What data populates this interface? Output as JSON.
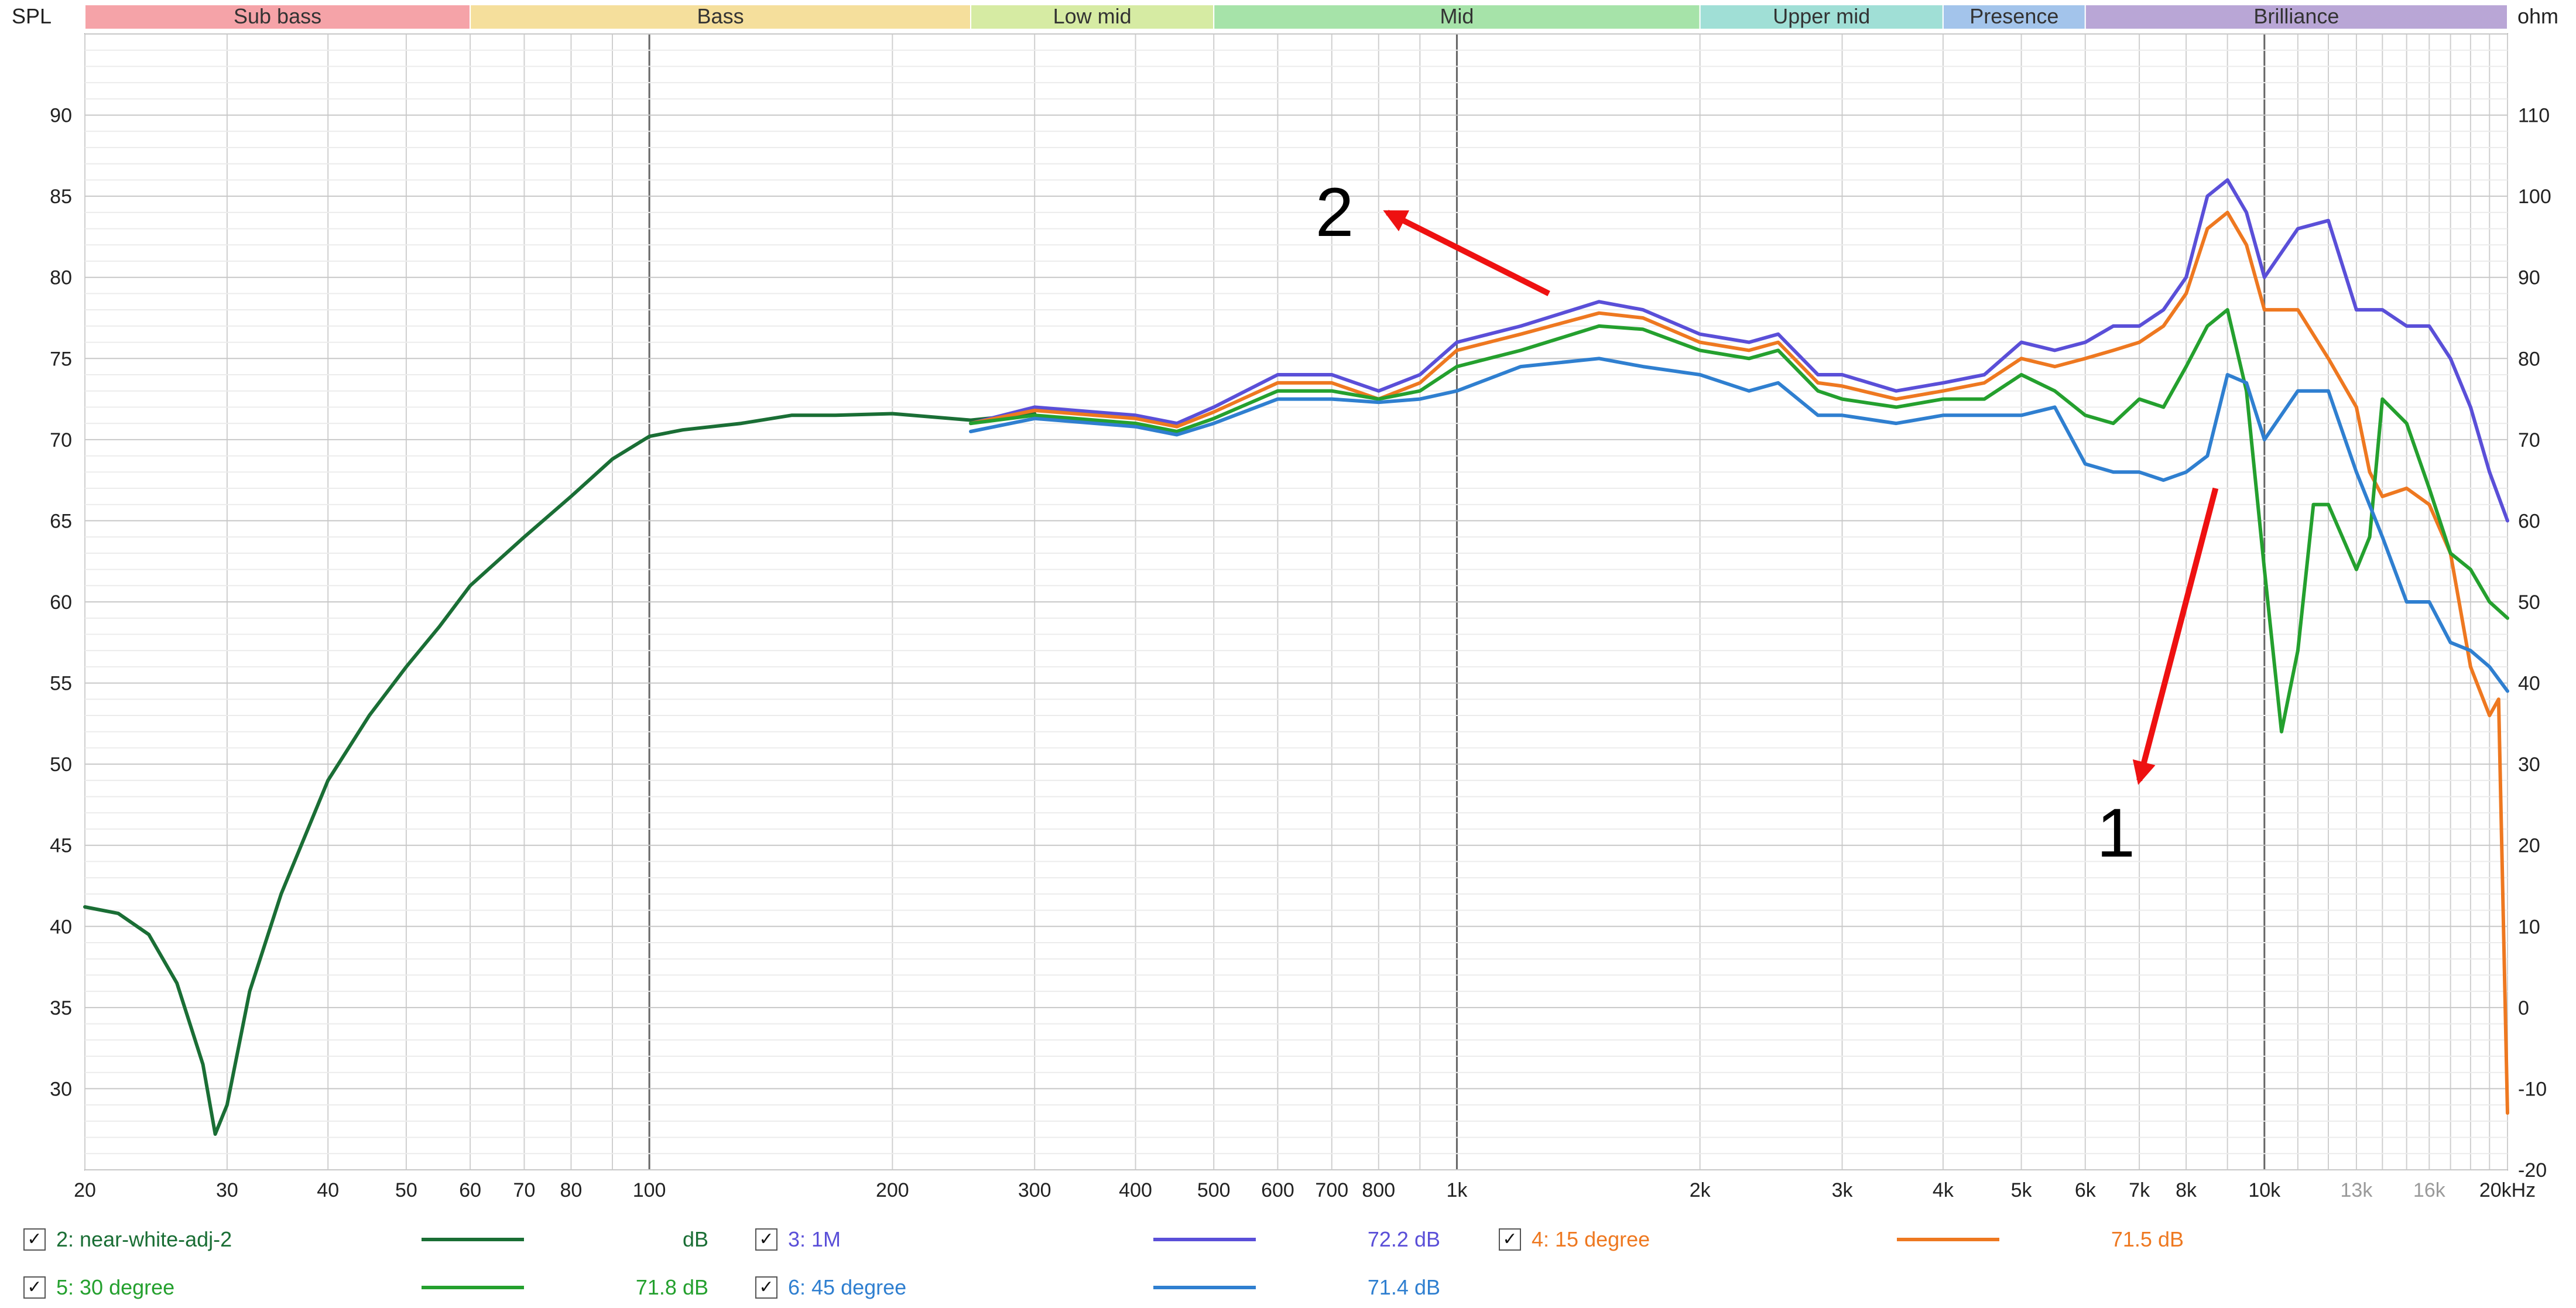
{
  "chart_data": {
    "type": "line",
    "x_scale": "log",
    "xlim": [
      20,
      20000
    ],
    "ylim": [
      25,
      95
    ],
    "y2lim": [
      -20,
      120
    ],
    "grid": true,
    "y_label": "SPL",
    "y2_label": "ohm",
    "x_ticks": [
      {
        "v": 20,
        "label": "20"
      },
      {
        "v": 30,
        "label": "30"
      },
      {
        "v": 40,
        "label": "40"
      },
      {
        "v": 50,
        "label": "50"
      },
      {
        "v": 60,
        "label": "60"
      },
      {
        "v": 70,
        "label": "70"
      },
      {
        "v": 80,
        "label": "80"
      },
      {
        "v": 100,
        "label": "100"
      },
      {
        "v": 200,
        "label": "200"
      },
      {
        "v": 300,
        "label": "300"
      },
      {
        "v": 400,
        "label": "400"
      },
      {
        "v": 500,
        "label": "500"
      },
      {
        "v": 600,
        "label": "600"
      },
      {
        "v": 700,
        "label": "700"
      },
      {
        "v": 800,
        "label": "800"
      },
      {
        "v": 1000,
        "label": "1k"
      },
      {
        "v": 2000,
        "label": "2k"
      },
      {
        "v": 3000,
        "label": "3k"
      },
      {
        "v": 4000,
        "label": "4k"
      },
      {
        "v": 5000,
        "label": "5k"
      },
      {
        "v": 6000,
        "label": "6k"
      },
      {
        "v": 7000,
        "label": "7k"
      },
      {
        "v": 8000,
        "label": "8k"
      },
      {
        "v": 10000,
        "label": "10k"
      },
      {
        "v": 13000,
        "label": "13k",
        "grey": true
      },
      {
        "v": 16000,
        "label": "16k",
        "grey": true
      },
      {
        "v": 20000,
        "label": "20kHz"
      }
    ],
    "y_ticks": [
      30,
      35,
      40,
      45,
      50,
      55,
      60,
      65,
      70,
      75,
      80,
      85,
      90
    ],
    "y2_ticks": [
      -20,
      -10,
      0,
      10,
      20,
      30,
      40,
      50,
      60,
      70,
      80,
      90,
      100,
      110
    ],
    "bands": [
      {
        "name": "Sub bass",
        "from": 20,
        "to": 60,
        "color": "#f5a3a8"
      },
      {
        "name": "Bass",
        "from": 60,
        "to": 250,
        "color": "#f5df9c"
      },
      {
        "name": "Low mid",
        "from": 250,
        "to": 500,
        "color": "#d6eba3"
      },
      {
        "name": "Mid",
        "from": 500,
        "to": 2000,
        "color": "#a6e3a9"
      },
      {
        "name": "Upper mid",
        "from": 2000,
        "to": 4000,
        "color": "#a0dfd6"
      },
      {
        "name": "Presence",
        "from": 4000,
        "to": 6000,
        "color": "#a3c4eb"
      },
      {
        "name": "Brilliance",
        "from": 6000,
        "to": 20000,
        "color": "#b9a6d6"
      }
    ],
    "series": [
      {
        "name": "2: near-white-adj-2",
        "color": "#1a6e35",
        "value_label": "dB",
        "x": [
          20,
          22,
          24,
          26,
          28,
          29,
          30,
          32,
          35,
          40,
          45,
          50,
          55,
          60,
          70,
          80,
          90,
          100,
          110,
          130,
          150,
          170,
          200,
          250,
          300
        ],
        "y": [
          41.2,
          40.8,
          39.5,
          36.5,
          31.5,
          27.2,
          29,
          36,
          42,
          49,
          53,
          56,
          58.5,
          61,
          64,
          66.5,
          68.8,
          70.2,
          70.6,
          71,
          71.5,
          71.5,
          71.6,
          71.2,
          71.6
        ]
      },
      {
        "name": "3: 1M",
        "color": "#5a4fd8",
        "value_label": "72.2 dB",
        "x": [
          250,
          300,
          400,
          450,
          500,
          600,
          700,
          800,
          900,
          1000,
          1200,
          1500,
          1700,
          2000,
          2300,
          2500,
          2800,
          3000,
          3500,
          4000,
          4500,
          5000,
          5500,
          6000,
          6500,
          7000,
          7500,
          8000,
          8500,
          9000,
          9500,
          10000,
          11000,
          12000,
          13000,
          14000,
          15000,
          16000,
          17000,
          18000,
          19000,
          20000
        ],
        "y": [
          71,
          72,
          71.5,
          71,
          72,
          74,
          74,
          73,
          74,
          76,
          77,
          78.5,
          78,
          76.5,
          76,
          76.5,
          74,
          74,
          73,
          73.5,
          74,
          76,
          75.5,
          76,
          77,
          77,
          78,
          80,
          85,
          86,
          84,
          80,
          83,
          83.5,
          78,
          78,
          77,
          77,
          75,
          72,
          68,
          65
        ]
      },
      {
        "name": "4: 15 degree",
        "color": "#ee7820",
        "value_label": "71.5 dB",
        "x": [
          250,
          300,
          400,
          450,
          500,
          600,
          700,
          800,
          900,
          1000,
          1200,
          1500,
          1700,
          2000,
          2300,
          2500,
          2800,
          3000,
          3500,
          4000,
          4500,
          5000,
          5500,
          6000,
          6500,
          7000,
          7500,
          8000,
          8500,
          9000,
          9500,
          10000,
          11000,
          12000,
          13000,
          13500,
          14000,
          15000,
          16000,
          17000,
          18000,
          19000,
          19500,
          20000
        ],
        "y": [
          71,
          71.8,
          71.3,
          70.8,
          71.7,
          73.5,
          73.5,
          72.5,
          73.5,
          75.5,
          76.5,
          77.8,
          77.5,
          76,
          75.5,
          76,
          73.5,
          73.3,
          72.5,
          73,
          73.5,
          75,
          74.5,
          75,
          75.5,
          76,
          77,
          79,
          83,
          84,
          82,
          78,
          78,
          75,
          72,
          68,
          66.5,
          67,
          66,
          63,
          56,
          53,
          54,
          28.5
        ]
      },
      {
        "name": "5: 30 degree",
        "color": "#24a02e",
        "value_label": "71.8 dB",
        "x": [
          250,
          300,
          400,
          450,
          500,
          600,
          700,
          800,
          900,
          1000,
          1200,
          1500,
          1700,
          2000,
          2300,
          2500,
          2800,
          3000,
          3500,
          4000,
          4500,
          5000,
          5500,
          6000,
          6500,
          7000,
          7500,
          8000,
          8500,
          9000,
          9500,
          10000,
          10500,
          11000,
          11500,
          12000,
          13000,
          13500,
          14000,
          15000,
          16000,
          17000,
          18000,
          19000,
          20000
        ],
        "y": [
          71,
          71.5,
          71,
          70.5,
          71.3,
          73,
          73,
          72.5,
          73,
          74.5,
          75.5,
          77,
          76.8,
          75.5,
          75,
          75.5,
          73,
          72.5,
          72,
          72.5,
          72.5,
          74,
          73,
          71.5,
          71,
          72.5,
          72,
          74.5,
          77,
          78,
          73,
          62,
          52,
          57,
          66,
          66,
          62,
          64,
          72.5,
          71,
          67,
          63,
          62,
          60,
          59
        ]
      },
      {
        "name": "6: 45 degree",
        "color": "#2f7fd0",
        "value_label": "71.4 dB",
        "x": [
          250,
          300,
          400,
          450,
          500,
          600,
          700,
          800,
          900,
          1000,
          1200,
          1500,
          1700,
          2000,
          2300,
          2500,
          2800,
          3000,
          3500,
          4000,
          4500,
          5000,
          5500,
          6000,
          6500,
          7000,
          7500,
          8000,
          8500,
          9000,
          9500,
          10000,
          11000,
          12000,
          13000,
          14000,
          15000,
          16000,
          17000,
          18000,
          19000,
          20000
        ],
        "y": [
          70.5,
          71.3,
          70.8,
          70.3,
          71,
          72.5,
          72.5,
          72.3,
          72.5,
          73,
          74.5,
          75,
          74.5,
          74,
          73,
          73.5,
          71.5,
          71.5,
          71,
          71.5,
          71.5,
          71.5,
          72,
          68.5,
          68,
          68,
          67.5,
          68,
          69,
          74,
          73.5,
          70,
          73,
          73,
          68,
          64,
          60,
          60,
          57.5,
          57,
          56,
          54.5
        ]
      }
    ],
    "annotations": [
      {
        "label": "1",
        "from_x": 8700,
        "from_y": 67,
        "to_x": 7000,
        "to_y": 49
      },
      {
        "label": "2",
        "from_x": 1300,
        "from_y": 79,
        "to_x": 820,
        "to_y": 84
      }
    ]
  }
}
